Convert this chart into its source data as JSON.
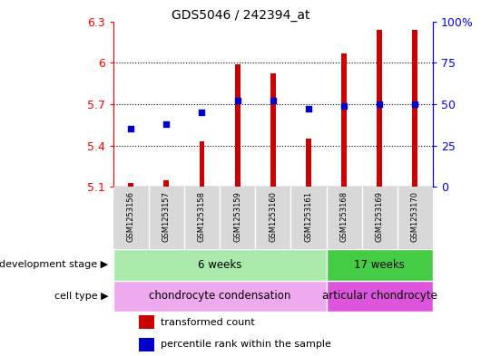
{
  "title": "GDS5046 / 242394_at",
  "samples": [
    "GSM1253156",
    "GSM1253157",
    "GSM1253158",
    "GSM1253159",
    "GSM1253160",
    "GSM1253161",
    "GSM1253168",
    "GSM1253169",
    "GSM1253170"
  ],
  "transformed_count": [
    5.13,
    5.15,
    5.43,
    5.99,
    5.92,
    5.45,
    6.07,
    6.24,
    6.24
  ],
  "percentile_rank": [
    35,
    38,
    45,
    52,
    52,
    47,
    49,
    50,
    50
  ],
  "ylim_left": [
    5.1,
    6.3
  ],
  "ylim_right": [
    0,
    100
  ],
  "yticks_left": [
    5.1,
    5.4,
    5.7,
    6.0,
    6.3
  ],
  "yticks_right": [
    0,
    25,
    50,
    75,
    100
  ],
  "ytick_labels_left": [
    "5.1",
    "5.4",
    "5.7",
    "6",
    "6.3"
  ],
  "ytick_labels_right": [
    "0",
    "25",
    "50",
    "75",
    "100%"
  ],
  "bar_color": "#cc0000",
  "dot_color": "#0000cc",
  "bar_bottom": 5.1,
  "bar_width": 0.15,
  "development_stage_groups": [
    {
      "label": "6 weeks",
      "start": 0,
      "end": 6,
      "color": "#aaeaaa"
    },
    {
      "label": "17 weeks",
      "start": 6,
      "end": 9,
      "color": "#44cc44"
    }
  ],
  "cell_type_groups": [
    {
      "label": "chondrocyte condensation",
      "start": 0,
      "end": 6,
      "color": "#eeaaee"
    },
    {
      "label": "articular chondrocyte",
      "start": 6,
      "end": 9,
      "color": "#dd55dd"
    }
  ],
  "legend_items": [
    {
      "label": "transformed count",
      "color": "#cc0000"
    },
    {
      "label": "percentile rank within the sample",
      "color": "#0000cc"
    }
  ],
  "dev_stage_label": "development stage",
  "cell_type_label": "cell type",
  "background_color": "#ffffff"
}
